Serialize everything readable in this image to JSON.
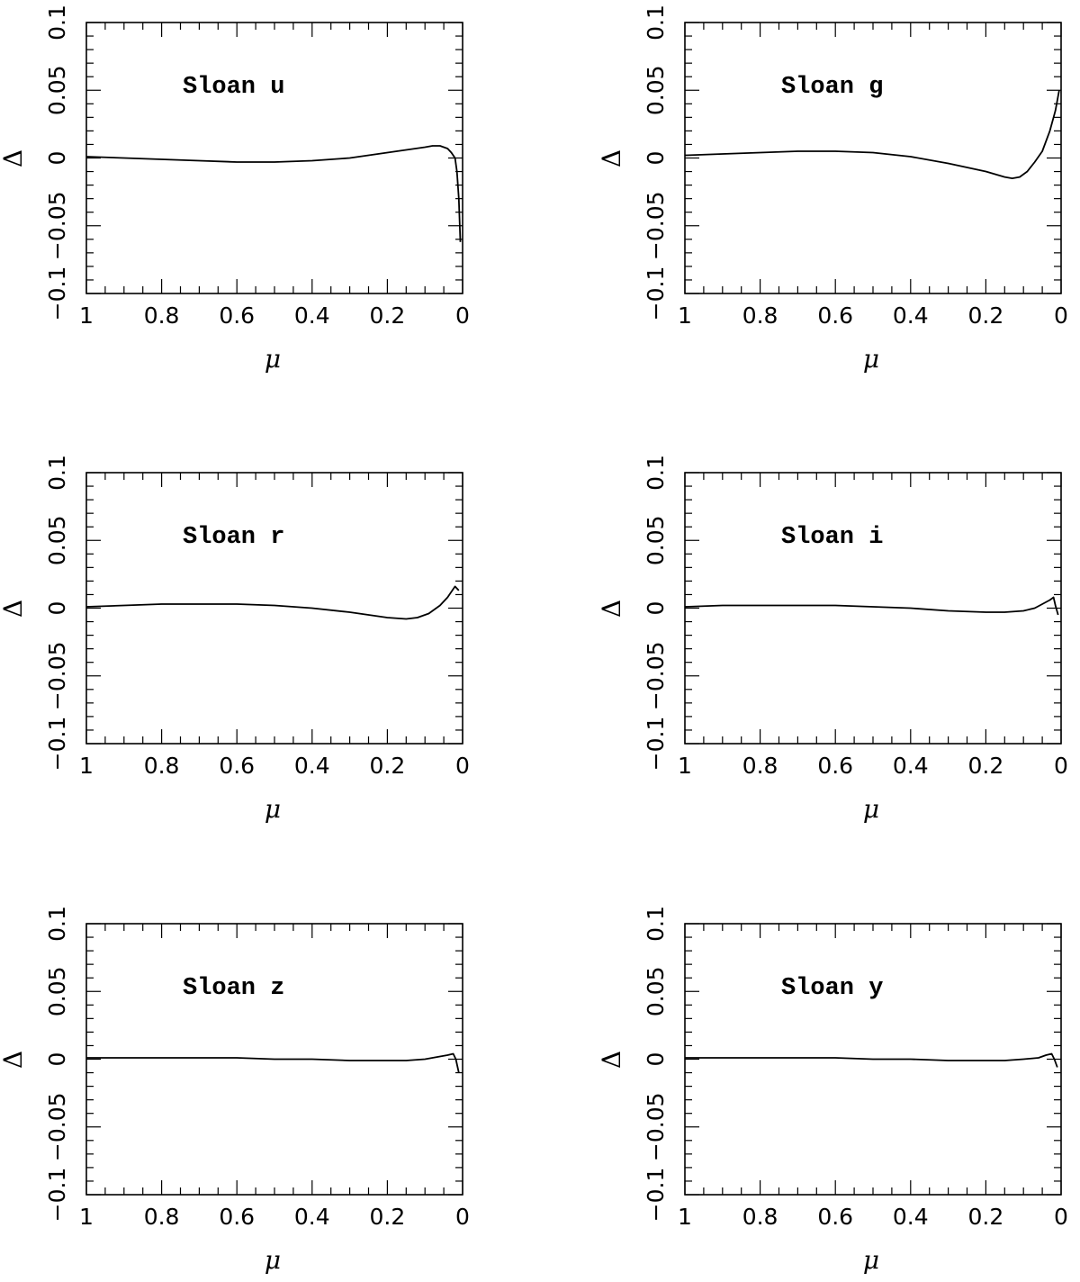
{
  "chart_data": [
    {
      "type": "line",
      "annotation": "Sloan u",
      "xlabel": "μ",
      "ylabel": "Δ",
      "xlim": [
        1,
        0
      ],
      "ylim": [
        -0.1,
        0.1
      ],
      "xticks": [
        "1",
        "0.8",
        "0.6",
        "0.4",
        "0.2",
        "0"
      ],
      "yticks": [
        "−0.1",
        "−0.05",
        "0",
        "0.05",
        "0.1"
      ],
      "series": [
        {
          "x": [
            1,
            0.9,
            0.8,
            0.7,
            0.6,
            0.55,
            0.5,
            0.4,
            0.3,
            0.2,
            0.15,
            0.1,
            0.08,
            0.06,
            0.04,
            0.03,
            0.02,
            0.015,
            0.01,
            0.006
          ],
          "values": [
            0.001,
            0.0,
            -0.001,
            -0.002,
            -0.003,
            -0.003,
            -0.003,
            -0.002,
            0.0,
            0.004,
            0.006,
            0.008,
            0.009,
            0.009,
            0.007,
            0.004,
            0.0,
            -0.01,
            -0.03,
            -0.062
          ]
        }
      ]
    },
    {
      "type": "line",
      "annotation": "Sloan g",
      "xlabel": "μ",
      "ylabel": "Δ",
      "xlim": [
        1,
        0
      ],
      "ylim": [
        -0.1,
        0.1
      ],
      "xticks": [
        "1",
        "0.8",
        "0.6",
        "0.4",
        "0.2",
        "0"
      ],
      "yticks": [
        "−0.1",
        "−0.05",
        "0",
        "0.05",
        "0.1"
      ],
      "series": [
        {
          "x": [
            1,
            0.9,
            0.8,
            0.7,
            0.6,
            0.5,
            0.4,
            0.3,
            0.2,
            0.15,
            0.13,
            0.11,
            0.09,
            0.07,
            0.05,
            0.03,
            0.015,
            0.005
          ],
          "values": [
            0.002,
            0.003,
            0.004,
            0.005,
            0.005,
            0.004,
            0.001,
            -0.004,
            -0.01,
            -0.014,
            -0.015,
            -0.014,
            -0.01,
            -0.003,
            0.005,
            0.02,
            0.035,
            0.05
          ]
        }
      ]
    },
    {
      "type": "line",
      "annotation": "Sloan r",
      "xlabel": "μ",
      "ylabel": "Δ",
      "xlim": [
        1,
        0
      ],
      "ylim": [
        -0.1,
        0.1
      ],
      "xticks": [
        "1",
        "0.8",
        "0.6",
        "0.4",
        "0.2",
        "0"
      ],
      "yticks": [
        "−0.1",
        "−0.05",
        "0",
        "0.05",
        "0.1"
      ],
      "series": [
        {
          "x": [
            1,
            0.9,
            0.8,
            0.7,
            0.6,
            0.5,
            0.4,
            0.3,
            0.2,
            0.15,
            0.12,
            0.09,
            0.06,
            0.04,
            0.02,
            0.01
          ],
          "values": [
            0.001,
            0.002,
            0.003,
            0.003,
            0.003,
            0.002,
            0.0,
            -0.003,
            -0.007,
            -0.008,
            -0.007,
            -0.004,
            0.002,
            0.008,
            0.016,
            0.013
          ]
        }
      ]
    },
    {
      "type": "line",
      "annotation": "Sloan i",
      "xlabel": "μ",
      "ylabel": "Δ",
      "xlim": [
        1,
        0
      ],
      "ylim": [
        -0.1,
        0.1
      ],
      "xticks": [
        "1",
        "0.8",
        "0.6",
        "0.4",
        "0.2",
        "0"
      ],
      "yticks": [
        "−0.1",
        "−0.05",
        "0",
        "0.05",
        "0.1"
      ],
      "series": [
        {
          "x": [
            1,
            0.9,
            0.8,
            0.7,
            0.6,
            0.5,
            0.4,
            0.3,
            0.2,
            0.15,
            0.1,
            0.07,
            0.05,
            0.03,
            0.02,
            0.015,
            0.008
          ],
          "values": [
            0.001,
            0.002,
            0.002,
            0.002,
            0.002,
            0.001,
            0.0,
            -0.002,
            -0.003,
            -0.003,
            -0.002,
            0.0,
            0.003,
            0.006,
            0.008,
            0.002,
            -0.005
          ]
        }
      ]
    },
    {
      "type": "line",
      "annotation": "Sloan z",
      "xlabel": "μ",
      "ylabel": "Δ",
      "xlim": [
        1,
        0
      ],
      "ylim": [
        -0.1,
        0.1
      ],
      "xticks": [
        "1",
        "0.8",
        "0.6",
        "0.4",
        "0.2",
        "0"
      ],
      "yticks": [
        "−0.1",
        "−0.05",
        "0",
        "0.05",
        "0.1"
      ],
      "series": [
        {
          "x": [
            1,
            0.9,
            0.8,
            0.7,
            0.6,
            0.5,
            0.4,
            0.3,
            0.2,
            0.15,
            0.1,
            0.06,
            0.04,
            0.025,
            0.018,
            0.01
          ],
          "values": [
            0.001,
            0.001,
            0.001,
            0.001,
            0.001,
            0.0,
            0.0,
            -0.001,
            -0.001,
            -0.001,
            0.0,
            0.002,
            0.003,
            0.004,
            0.0,
            -0.01
          ]
        }
      ]
    },
    {
      "type": "line",
      "annotation": "Sloan y",
      "xlabel": "μ",
      "ylabel": "Δ",
      "xlim": [
        1,
        0
      ],
      "ylim": [
        -0.1,
        0.1
      ],
      "xticks": [
        "1",
        "0.8",
        "0.6",
        "0.4",
        "0.2",
        "0"
      ],
      "yticks": [
        "−0.1",
        "−0.05",
        "0",
        "0.05",
        "0.1"
      ],
      "series": [
        {
          "x": [
            1,
            0.9,
            0.8,
            0.7,
            0.6,
            0.5,
            0.4,
            0.3,
            0.2,
            0.15,
            0.1,
            0.06,
            0.04,
            0.025,
            0.018,
            0.01
          ],
          "values": [
            0.001,
            0.001,
            0.001,
            0.001,
            0.001,
            0.0,
            0.0,
            -0.001,
            -0.001,
            -0.001,
            0.0,
            0.001,
            0.003,
            0.004,
            0.0,
            -0.006
          ]
        }
      ]
    }
  ]
}
